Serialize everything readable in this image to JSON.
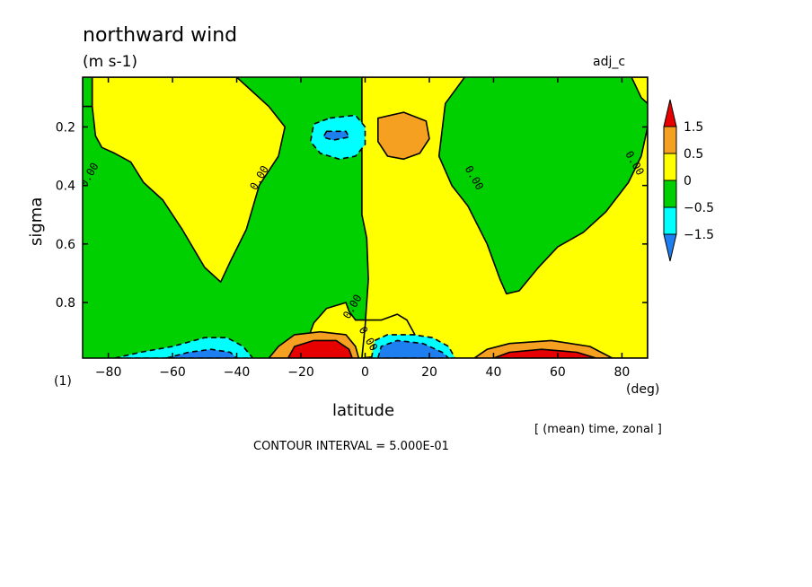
{
  "chart_data": {
    "type": "contour",
    "title": "northward wind",
    "units": "(m s-1)",
    "label_right": "adj_c",
    "xlabel": "latitude",
    "x_units": "(deg)",
    "ylabel": "sigma",
    "corner_label": "(1)",
    "averaging_note": "[ (mean) time, zonal ]",
    "contour_interval_text": "CONTOUR INTERVAL = 5.000E-01",
    "xlim": [
      -88,
      88
    ],
    "ylim": [
      0.99,
      0.03
    ],
    "x_ticks": [
      -80,
      -60,
      -40,
      -20,
      0,
      20,
      40,
      60,
      80
    ],
    "y_ticks": [
      0.2,
      0.4,
      0.6,
      0.8
    ],
    "contour_label": "0.00",
    "colorbar": {
      "levels": [
        "1.5",
        "0.5",
        "0",
        "-0.5",
        "-1.5"
      ],
      "colors": [
        "#e60000",
        "#f5a020",
        "#ffff00",
        "#00d000",
        "#00ffff",
        "#1e7ff0"
      ]
    },
    "fill_colors": {
      "strong_pos": "#e60000",
      "pos": "#f5a020",
      "weak_pos": "#ffff00",
      "weak_neg": "#00d000",
      "neg": "#00ffff",
      "strong_neg": "#1e7ff0"
    },
    "regions": [
      {
        "name": "band-sh-polar",
        "sign": "weak_neg",
        "points": [
          [
            -88,
            0.03
          ],
          [
            -85,
            0.03
          ],
          [
            -85,
            0.13
          ],
          [
            -88,
            0.13
          ]
        ]
      },
      {
        "name": "band-sh-midlat-upper",
        "sign": "weak_pos",
        "points": [
          [
            -85,
            0.03
          ],
          [
            -40,
            0.03
          ],
          [
            -30,
            0.13
          ],
          [
            -25,
            0.2
          ],
          [
            -27,
            0.3
          ],
          [
            -33,
            0.4
          ],
          [
            -37,
            0.55
          ],
          [
            -42,
            0.66
          ],
          [
            -45,
            0.73
          ],
          [
            -50,
            0.68
          ],
          [
            -57,
            0.55
          ],
          [
            -63,
            0.45
          ],
          [
            -69,
            0.39
          ],
          [
            -73,
            0.32
          ],
          [
            -78,
            0.29
          ],
          [
            -82,
            0.27
          ],
          [
            -84,
            0.23
          ],
          [
            -85,
            0.13
          ]
        ]
      },
      {
        "name": "band-tropics-yellow",
        "sign": "weak_pos",
        "points": [
          [
            -1,
            0.03
          ],
          [
            31,
            0.03
          ],
          [
            25,
            0.12
          ],
          [
            23,
            0.3
          ],
          [
            27,
            0.4
          ],
          [
            32,
            0.47
          ],
          [
            38,
            0.6
          ],
          [
            42,
            0.72
          ],
          [
            44,
            0.77
          ],
          [
            48,
            0.76
          ],
          [
            54,
            0.68
          ],
          [
            60,
            0.61
          ],
          [
            68,
            0.56
          ],
          [
            75,
            0.49
          ],
          [
            82,
            0.39
          ],
          [
            86,
            0.3
          ],
          [
            88,
            0.2
          ],
          [
            88,
            0.99
          ],
          [
            -20,
            0.99
          ],
          [
            -18,
            0.93
          ],
          [
            -16,
            0.87
          ],
          [
            -12,
            0.82
          ],
          [
            -6,
            0.8
          ],
          [
            -5,
            0.83
          ],
          [
            -3,
            0.86
          ],
          [
            5,
            0.86
          ],
          [
            10,
            0.84
          ],
          [
            13,
            0.86
          ],
          [
            16,
            0.92
          ],
          [
            18,
            0.95
          ],
          [
            21,
            0.96
          ],
          [
            -1,
            0.99
          ],
          [
            0,
            0.88
          ],
          [
            1,
            0.72
          ],
          [
            0.5,
            0.58
          ],
          [
            -1,
            0.5
          ],
          [
            -1,
            0.03
          ]
        ]
      },
      {
        "name": "band-nh-polar",
        "sign": "weak_pos",
        "points": [
          [
            83,
            0.03
          ],
          [
            88,
            0.03
          ],
          [
            88,
            0.12
          ],
          [
            86,
            0.1
          ]
        ]
      },
      {
        "name": "upper-neg-cell",
        "sign": "neg",
        "points": [
          [
            -11,
            0.17
          ],
          [
            -3,
            0.16
          ],
          [
            0,
            0.2
          ],
          [
            0,
            0.26
          ],
          [
            -3,
            0.3
          ],
          [
            -8,
            0.31
          ],
          [
            -14,
            0.29
          ],
          [
            -17,
            0.25
          ],
          [
            -16,
            0.19
          ]
        ]
      },
      {
        "name": "upper-neg-core",
        "sign": "strong_neg",
        "points": [
          [
            -12,
            0.215
          ],
          [
            -6,
            0.215
          ],
          [
            -5,
            0.235
          ],
          [
            -10,
            0.245
          ],
          [
            -13,
            0.235
          ]
        ]
      },
      {
        "name": "upper-pos-cell",
        "sign": "pos",
        "points": [
          [
            4,
            0.17
          ],
          [
            12,
            0.15
          ],
          [
            19,
            0.18
          ],
          [
            20,
            0.24
          ],
          [
            17,
            0.29
          ],
          [
            12,
            0.31
          ],
          [
            7,
            0.3
          ],
          [
            4,
            0.25
          ]
        ]
      },
      {
        "name": "lower-sh-neg-cell",
        "sign": "neg",
        "points": [
          [
            -78,
            0.99
          ],
          [
            -70,
            0.97
          ],
          [
            -60,
            0.95
          ],
          [
            -50,
            0.92
          ],
          [
            -43,
            0.92
          ],
          [
            -38,
            0.95
          ],
          [
            -35,
            0.99
          ]
        ]
      },
      {
        "name": "lower-sh-neg-core",
        "sign": "strong_neg",
        "points": [
          [
            -62,
            0.99
          ],
          [
            -55,
            0.97
          ],
          [
            -48,
            0.96
          ],
          [
            -42,
            0.97
          ],
          [
            -40,
            0.99
          ]
        ]
      },
      {
        "name": "lower-trop-pos-cell",
        "sign": "pos",
        "points": [
          [
            -30,
            0.99
          ],
          [
            -27,
            0.95
          ],
          [
            -22,
            0.91
          ],
          [
            -14,
            0.9
          ],
          [
            -6,
            0.91
          ],
          [
            -3,
            0.95
          ],
          [
            -2,
            0.99
          ]
        ]
      },
      {
        "name": "lower-trop-pos-core",
        "sign": "strong_pos",
        "points": [
          [
            -24,
            0.99
          ],
          [
            -22,
            0.95
          ],
          [
            -16,
            0.93
          ],
          [
            -9,
            0.93
          ],
          [
            -5,
            0.96
          ],
          [
            -4,
            0.99
          ]
        ]
      },
      {
        "name": "lower-trop-neg-cell",
        "sign": "neg",
        "points": [
          [
            2,
            0.99
          ],
          [
            3,
            0.93
          ],
          [
            7,
            0.91
          ],
          [
            15,
            0.91
          ],
          [
            21,
            0.92
          ],
          [
            26,
            0.95
          ],
          [
            28,
            0.99
          ]
        ]
      },
      {
        "name": "lower-trop-neg-core",
        "sign": "strong_neg",
        "points": [
          [
            4,
            0.99
          ],
          [
            5,
            0.95
          ],
          [
            10,
            0.93
          ],
          [
            18,
            0.94
          ],
          [
            24,
            0.97
          ],
          [
            26,
            0.99
          ]
        ]
      },
      {
        "name": "lower-nh-pos-cell",
        "sign": "pos",
        "points": [
          [
            34,
            0.99
          ],
          [
            38,
            0.96
          ],
          [
            45,
            0.94
          ],
          [
            58,
            0.93
          ],
          [
            70,
            0.95
          ],
          [
            77,
            0.99
          ]
        ]
      },
      {
        "name": "lower-nh-pos-core",
        "sign": "strong_pos",
        "points": [
          [
            40,
            0.99
          ],
          [
            45,
            0.97
          ],
          [
            55,
            0.96
          ],
          [
            66,
            0.97
          ],
          [
            72,
            0.99
          ]
        ]
      }
    ],
    "contour_labels": [
      {
        "lat": -85,
        "sigma": 0.37,
        "text": "0.00"
      },
      {
        "lat": -32,
        "sigma": 0.38,
        "text": "0.00"
      },
      {
        "lat": 33,
        "sigma": 0.38,
        "text": "0.00"
      },
      {
        "lat": 83,
        "sigma": 0.33,
        "text": "0.00"
      },
      {
        "lat": -3,
        "sigma": 0.82,
        "text": "0.00"
      },
      {
        "lat": 0,
        "sigma": 0.93,
        "text": "0.00"
      }
    ]
  }
}
